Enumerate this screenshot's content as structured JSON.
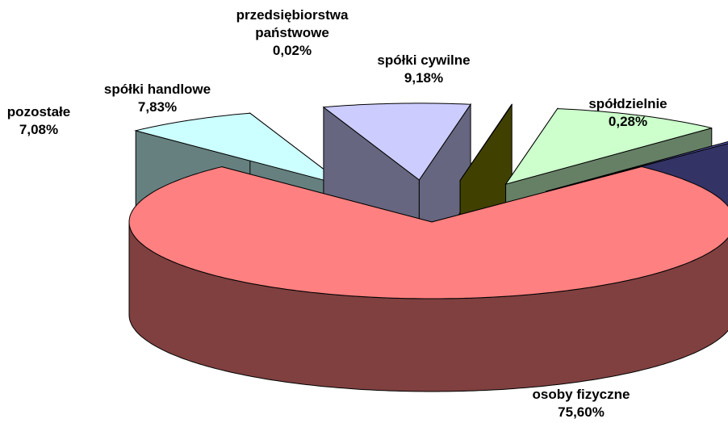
{
  "chart_data": {
    "type": "pie3d",
    "categories": [
      "osoby fizyczne",
      "pozostałe",
      "spółki handlowe",
      "przedsiębiorstwa państwowe",
      "spółki cywilne",
      "spółdzielnie"
    ],
    "values": [
      75.6,
      7.08,
      7.83,
      0.02,
      9.18,
      0.28
    ],
    "value_labels": [
      "75,60%",
      "7,08%",
      "7,83%",
      "0,02%",
      "9,18%",
      "0,28%"
    ],
    "colors": [
      "#ff8080",
      "#ccffff",
      "#ccccff",
      "#808000",
      "#ccffcc",
      "#6666cc"
    ]
  }
}
